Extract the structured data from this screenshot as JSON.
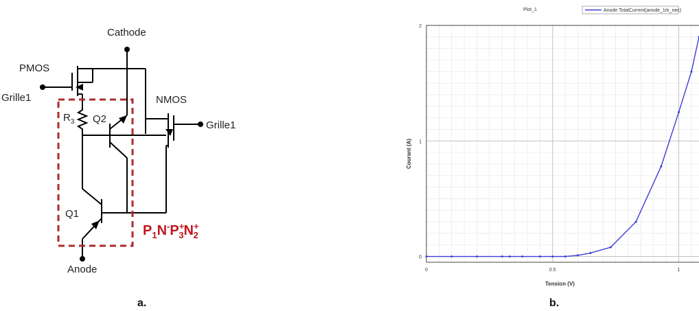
{
  "circuit": {
    "cathode": "Cathode",
    "pmos": "PMOS",
    "nmos": "NMOS",
    "grille_left": "Grille1",
    "grille_right": "Grille1",
    "r3_main": "R",
    "r3_sub": "3",
    "q1": "Q1",
    "q2": "Q2",
    "anode": "Anode",
    "structure": {
      "p1": "P",
      "p1_sub": "1",
      "n": "N",
      "n_sup": "-",
      "p3": "P",
      "p3_sup": "+",
      "p3_sub": "3",
      "n2": "N",
      "n2_sup": "+",
      "n2_sub": "2"
    },
    "caption": "a."
  },
  "plot": {
    "caption": "b.",
    "header_left": "Plot_1",
    "legend": "Anode TotalCurrent(anode_1rk_nec)",
    "line_color": "#3b3bd6"
  },
  "chart_data": {
    "type": "line",
    "xlabel": "Tension (V)",
    "ylabel": "Courant (A)",
    "xlim": [
      0,
      1.08
    ],
    "ylim": [
      -0.05,
      2.0
    ],
    "xticks": [
      "0",
      "0.5",
      "1"
    ],
    "yticks": [
      "0",
      "1",
      "2"
    ],
    "grid": true,
    "legend_position": "top",
    "series": [
      {
        "name": "Anode TotalCurrent(anode_1rk_nec)",
        "x": [
          0,
          0.1,
          0.2,
          0.3,
          0.33,
          0.38,
          0.45,
          0.5,
          0.55,
          0.6,
          0.65,
          0.73,
          0.83,
          0.93,
          1.0,
          1.05,
          1.08
        ],
        "y": [
          0,
          0,
          0,
          0,
          0,
          0,
          0,
          0,
          0,
          0.01,
          0.03,
          0.08,
          0.3,
          0.78,
          1.25,
          1.6,
          1.9
        ]
      }
    ]
  }
}
